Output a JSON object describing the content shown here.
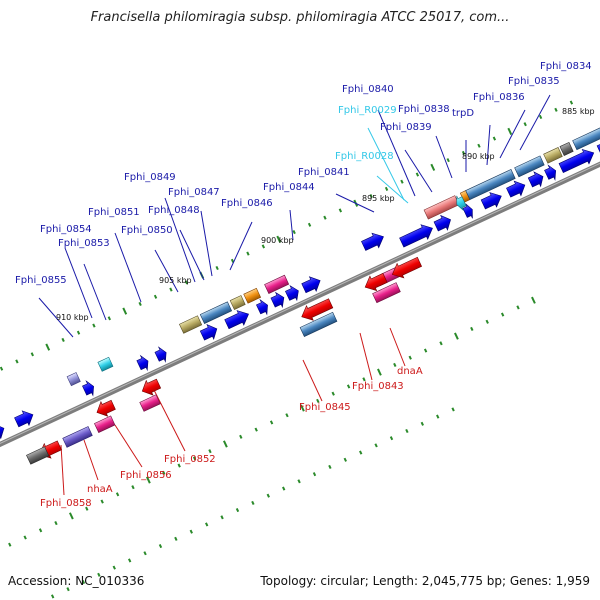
{
  "title": "Francisella philomiragia subsp. philomiragia ATCC 25017, com...",
  "footer": {
    "accession": "Accession: NC_010336",
    "summary": "Topology: circular; Length: 2,045,775 bp; Genes: 1,959"
  },
  "colors": {
    "top_label": "#1a1aa8",
    "rna_label": "#33c8e8",
    "bottom_label": "#cc1a1a",
    "backbone": "#7d7d7d",
    "tick": "#2a8a2a"
  },
  "kbp_labels": [
    "885 kbp",
    "890 kbp",
    "895 kbp",
    "900 kbp",
    "905 kbp",
    "910 kbp"
  ],
  "top_genes": [
    {
      "label": "Fphi_0834",
      "kind": "cds"
    },
    {
      "label": "Fphi_0835",
      "kind": "cds"
    },
    {
      "label": "Fphi_0836",
      "kind": "cds"
    },
    {
      "label": "trpD",
      "kind": "cds"
    },
    {
      "label": "Fphi_0838",
      "kind": "cds"
    },
    {
      "label": "Fphi_0839",
      "kind": "cds"
    },
    {
      "label": "Fphi_0840",
      "kind": "cds"
    },
    {
      "label": "Fphi_R0029",
      "kind": "rna"
    },
    {
      "label": "Fphi_R0028",
      "kind": "rna"
    },
    {
      "label": "Fphi_0841",
      "kind": "cds"
    },
    {
      "label": "Fphi_0844",
      "kind": "cds"
    },
    {
      "label": "Fphi_0846",
      "kind": "cds"
    },
    {
      "label": "Fphi_0847",
      "kind": "cds"
    },
    {
      "label": "Fphi_0848",
      "kind": "cds"
    },
    {
      "label": "Fphi_0849",
      "kind": "cds"
    },
    {
      "label": "Fphi_0850",
      "kind": "cds"
    },
    {
      "label": "Fphi_0851",
      "kind": "cds"
    },
    {
      "label": "Fphi_0853",
      "kind": "cds"
    },
    {
      "label": "Fphi_0854",
      "kind": "cds"
    },
    {
      "label": "Fphi_0855",
      "kind": "cds"
    }
  ],
  "bottom_genes": [
    {
      "label": "dnaA"
    },
    {
      "label": "Fphi_0843"
    },
    {
      "label": "Fphi_0845"
    },
    {
      "label": "Fphi_0852"
    },
    {
      "label": "Fphi_0856"
    },
    {
      "label": "nhaA"
    },
    {
      "label": "Fphi_0858"
    }
  ]
}
